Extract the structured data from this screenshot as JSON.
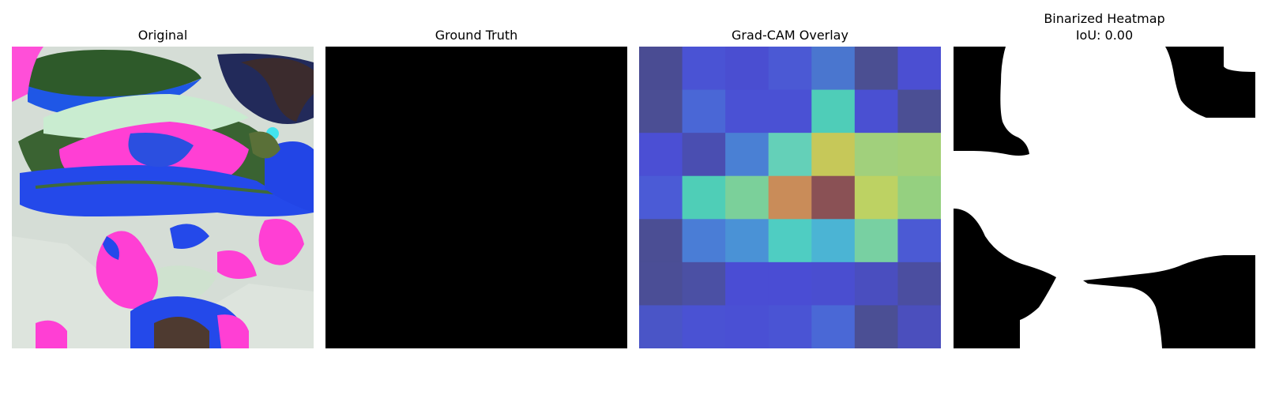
{
  "panels": [
    {
      "title": "Original"
    },
    {
      "title": "Ground Truth"
    },
    {
      "title": "Grad-CAM Overlay"
    },
    {
      "title": "Binarized Heatmap",
      "subtitle": "IoU: 0.00"
    }
  ],
  "gradcam_grid": [
    [
      "#4a4c93",
      "#4a53d4",
      "#4a4ed1",
      "#4b59d4",
      "#4a76cf",
      "#4b4f92",
      "#4b4fd2"
    ],
    [
      "#4b4e94",
      "#4a67d6",
      "#4a51d4",
      "#4a51d4",
      "#4fcdb8",
      "#4a50d2",
      "#4b4f94"
    ],
    [
      "#4b4fd4",
      "#4a4eb1",
      "#4a80d4",
      "#64d0b8",
      "#c6c859",
      "#a1d07c",
      "#a4d076"
    ],
    [
      "#4b5bd6",
      "#4fceb7",
      "#7bd09a",
      "#c98c59",
      "#8a5155",
      "#bdd263",
      "#95d080"
    ],
    [
      "#4b4e94",
      "#4a7dd6",
      "#4a92d6",
      "#4fcdc2",
      "#4bb4d4",
      "#78d0a2",
      "#4b5ad4"
    ],
    [
      "#4b4e96",
      "#4b50a4",
      "#4a4dd4",
      "#4a4dd4",
      "#4a4ed0",
      "#4a4ebf",
      "#4b4ea0"
    ],
    [
      "#4a55c7",
      "#4a52d3",
      "#4a50d4",
      "#4a54d4",
      "#4a68d6",
      "#4b4f94",
      "#4b4fbd"
    ]
  ]
}
